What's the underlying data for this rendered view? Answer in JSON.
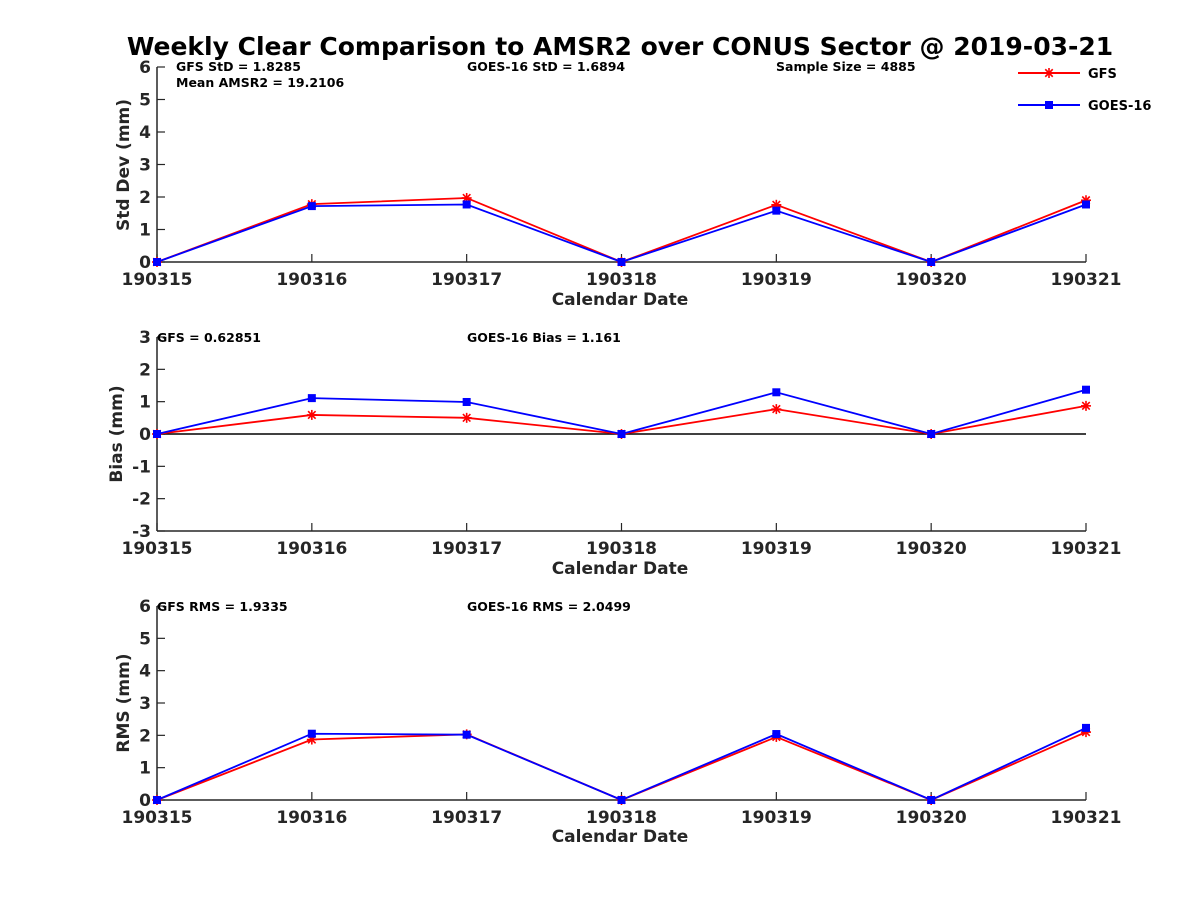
{
  "title": "Weekly Clear Comparison to AMSR2 over CONUS Sector @ 2019-03-21",
  "legend": [
    {
      "name": "GFS",
      "color": "#ff0000",
      "marker": "asterisk"
    },
    {
      "name": "GOES-16",
      "color": "#0000ff",
      "marker": "square"
    }
  ],
  "chart_data": [
    {
      "type": "line",
      "categories": [
        "190315",
        "190316",
        "190317",
        "190318",
        "190319",
        "190320",
        "190321"
      ],
      "xlabel": "Calendar Date",
      "ylabel": "Std Dev (mm)",
      "ylim": [
        0,
        6
      ],
      "yticks": [
        0,
        1,
        2,
        3,
        4,
        5,
        6
      ],
      "zero_line": false,
      "annotations": [
        "GFS StD = 1.8285",
        "Mean AMSR2 = 19.2106",
        "GOES-16 StD = 1.6894",
        "Sample Size = 4885"
      ],
      "series": [
        {
          "name": "GFS",
          "values": [
            0,
            1.78,
            1.97,
            0,
            1.76,
            0,
            1.9
          ]
        },
        {
          "name": "GOES-16",
          "values": [
            0,
            1.72,
            1.77,
            0,
            1.58,
            0,
            1.77
          ]
        }
      ]
    },
    {
      "type": "line",
      "categories": [
        "190315",
        "190316",
        "190317",
        "190318",
        "190319",
        "190320",
        "190321"
      ],
      "xlabel": "Calendar Date",
      "ylabel": "Bias (mm)",
      "ylim": [
        -3,
        3
      ],
      "yticks": [
        -3,
        -2,
        -1,
        0,
        1,
        2,
        3
      ],
      "zero_line": true,
      "annotations": [
        "GFS = 0.62851",
        "GOES-16 Bias  = 1.161"
      ],
      "series": [
        {
          "name": "GFS",
          "values": [
            0,
            0.59,
            0.5,
            0,
            0.77,
            0,
            0.87
          ]
        },
        {
          "name": "GOES-16",
          "values": [
            0,
            1.11,
            0.99,
            0,
            1.29,
            0,
            1.37
          ]
        }
      ]
    },
    {
      "type": "line",
      "categories": [
        "190315",
        "190316",
        "190317",
        "190318",
        "190319",
        "190320",
        "190321"
      ],
      "xlabel": "Calendar Date",
      "ylabel": "RMS (mm)",
      "ylim": [
        0,
        6
      ],
      "yticks": [
        0,
        1,
        2,
        3,
        4,
        5,
        6
      ],
      "zero_line": false,
      "annotations": [
        "GFS RMS = 1.9335",
        "GOES-16 RMS = 2.0499"
      ],
      "series": [
        {
          "name": "GFS",
          "values": [
            0,
            1.87,
            2.03,
            0,
            1.95,
            0,
            2.1
          ]
        },
        {
          "name": "GOES-16",
          "values": [
            0,
            2.05,
            2.02,
            0,
            2.04,
            0,
            2.23
          ]
        }
      ]
    }
  ]
}
